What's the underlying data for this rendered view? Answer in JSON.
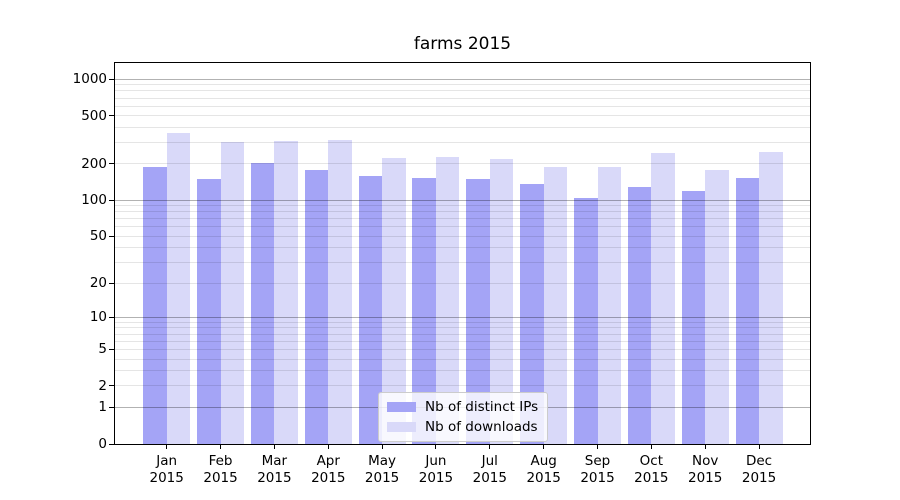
{
  "chart_data": {
    "type": "bar",
    "title": "farms 2015",
    "yscale": "log1p",
    "ylim": [
      0,
      1360
    ],
    "grid": true,
    "legend_position": "lower center",
    "categories": [
      "Jan 2015",
      "Feb 2015",
      "Mar 2015",
      "Apr 2015",
      "May 2015",
      "Jun 2015",
      "Jul 2015",
      "Aug 2015",
      "Sep 2015",
      "Oct 2015",
      "Nov 2015",
      "Dec 2015"
    ],
    "yticks": [
      0,
      1,
      2,
      5,
      10,
      20,
      50,
      100,
      200,
      500,
      1000
    ],
    "series": [
      {
        "name": "Nb of distinct IPs",
        "color": "#a4a4f6",
        "values": [
          190,
          150,
          205,
          180,
          160,
          152,
          150,
          137,
          105,
          130,
          120,
          152
        ]
      },
      {
        "name": "Nb of downloads",
        "color": "#d9d9f9",
        "values": [
          360,
          305,
          310,
          315,
          225,
          230,
          222,
          190,
          190,
          248,
          178,
          253
        ]
      }
    ]
  }
}
